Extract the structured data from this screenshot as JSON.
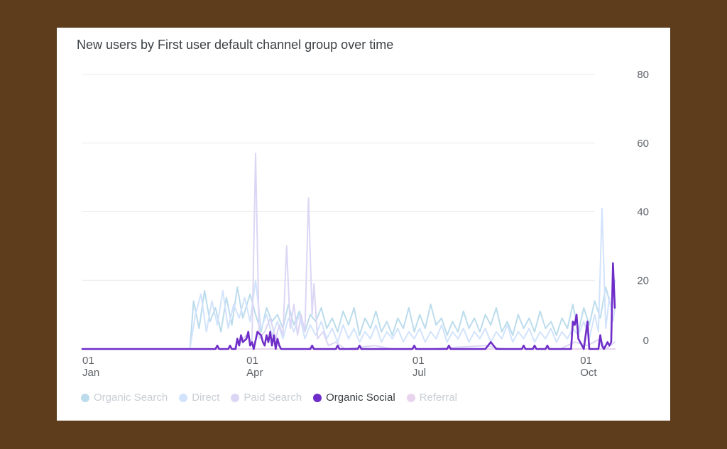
{
  "chart_data": {
    "type": "line",
    "title": "New users by First user default channel group over time",
    "ylim": [
      0,
      80
    ],
    "y_ticks": [
      "80",
      "60",
      "40",
      "20",
      "0"
    ],
    "x_ticks": [
      {
        "day": "01",
        "month": "Jan",
        "date": "2023-01-01"
      },
      {
        "day": "01",
        "month": "Apr",
        "date": "2023-04-01"
      },
      {
        "day": "01",
        "month": "Jul",
        "date": "2023-07-01"
      },
      {
        "day": "01",
        "month": "Oct",
        "date": "2023-10-01"
      }
    ],
    "x_range": [
      "2023-01-01",
      "2023-10-20"
    ],
    "grid": true,
    "legend_position": "bottom",
    "series": [
      {
        "name": "Organic Search",
        "color": "#bcdcec",
        "active": false,
        "points": [
          [
            "2023-01-01",
            0
          ],
          [
            "2023-03-01",
            0
          ],
          [
            "2023-03-03",
            14
          ],
          [
            "2023-03-06",
            6
          ],
          [
            "2023-03-09",
            17
          ],
          [
            "2023-03-12",
            8
          ],
          [
            "2023-03-15",
            12
          ],
          [
            "2023-03-18",
            5
          ],
          [
            "2023-03-21",
            15
          ],
          [
            "2023-03-24",
            7
          ],
          [
            "2023-03-27",
            18
          ],
          [
            "2023-03-30",
            9
          ],
          [
            "2023-04-03",
            16
          ],
          [
            "2023-04-06",
            10
          ],
          [
            "2023-04-09",
            5
          ],
          [
            "2023-04-12",
            12
          ],
          [
            "2023-04-15",
            8
          ],
          [
            "2023-04-18",
            10
          ],
          [
            "2023-04-21",
            6
          ],
          [
            "2023-04-24",
            13
          ],
          [
            "2023-04-27",
            7
          ],
          [
            "2023-04-30",
            11
          ],
          [
            "2023-05-03",
            5
          ],
          [
            "2023-05-06",
            10
          ],
          [
            "2023-05-09",
            8
          ],
          [
            "2023-05-12",
            12
          ],
          [
            "2023-05-15",
            6
          ],
          [
            "2023-05-18",
            9
          ],
          [
            "2023-05-21",
            5
          ],
          [
            "2023-05-24",
            11
          ],
          [
            "2023-05-27",
            7
          ],
          [
            "2023-05-30",
            12
          ],
          [
            "2023-06-02",
            4
          ],
          [
            "2023-06-05",
            9
          ],
          [
            "2023-06-08",
            6
          ],
          [
            "2023-06-11",
            11
          ],
          [
            "2023-06-14",
            5
          ],
          [
            "2023-06-17",
            8
          ],
          [
            "2023-06-20",
            4
          ],
          [
            "2023-06-23",
            9
          ],
          [
            "2023-06-26",
            6
          ],
          [
            "2023-06-29",
            12
          ],
          [
            "2023-07-02",
            5
          ],
          [
            "2023-07-05",
            10
          ],
          [
            "2023-07-08",
            6
          ],
          [
            "2023-07-11",
            13
          ],
          [
            "2023-07-14",
            7
          ],
          [
            "2023-07-17",
            9
          ],
          [
            "2023-07-20",
            4
          ],
          [
            "2023-07-23",
            8
          ],
          [
            "2023-07-26",
            5
          ],
          [
            "2023-07-29",
            11
          ],
          [
            "2023-08-01",
            6
          ],
          [
            "2023-08-04",
            9
          ],
          [
            "2023-08-07",
            5
          ],
          [
            "2023-08-10",
            10
          ],
          [
            "2023-08-13",
            7
          ],
          [
            "2023-08-16",
            12
          ],
          [
            "2023-08-19",
            5
          ],
          [
            "2023-08-22",
            8
          ],
          [
            "2023-08-25",
            4
          ],
          [
            "2023-08-28",
            10
          ],
          [
            "2023-08-31",
            6
          ],
          [
            "2023-09-03",
            9
          ],
          [
            "2023-09-06",
            5
          ],
          [
            "2023-09-09",
            11
          ],
          [
            "2023-09-12",
            6
          ],
          [
            "2023-09-15",
            8
          ],
          [
            "2023-09-18",
            4
          ],
          [
            "2023-09-21",
            9
          ],
          [
            "2023-09-24",
            6
          ],
          [
            "2023-09-27",
            13
          ],
          [
            "2023-09-30",
            5
          ],
          [
            "2023-10-03",
            12
          ],
          [
            "2023-10-06",
            7
          ],
          [
            "2023-10-09",
            14
          ],
          [
            "2023-10-12",
            9
          ],
          [
            "2023-10-15",
            18
          ],
          [
            "2023-10-18",
            12
          ],
          [
            "2023-10-20",
            20
          ]
        ]
      },
      {
        "name": "Direct",
        "color": "#d2e3fc",
        "active": false,
        "points": [
          [
            "2023-01-01",
            0
          ],
          [
            "2023-03-01",
            0
          ],
          [
            "2023-03-04",
            10
          ],
          [
            "2023-03-07",
            16
          ],
          [
            "2023-03-10",
            5
          ],
          [
            "2023-03-13",
            14
          ],
          [
            "2023-03-16",
            7
          ],
          [
            "2023-03-19",
            17
          ],
          [
            "2023-03-22",
            6
          ],
          [
            "2023-03-25",
            13
          ],
          [
            "2023-03-28",
            9
          ],
          [
            "2023-03-31",
            15
          ],
          [
            "2023-04-03",
            8
          ],
          [
            "2023-04-06",
            20
          ],
          [
            "2023-04-09",
            6
          ],
          [
            "2023-04-12",
            10
          ],
          [
            "2023-04-15",
            4
          ],
          [
            "2023-04-18",
            8
          ],
          [
            "2023-04-21",
            3
          ],
          [
            "2023-04-24",
            9
          ],
          [
            "2023-04-27",
            5
          ],
          [
            "2023-04-30",
            10
          ],
          [
            "2023-05-03",
            3
          ],
          [
            "2023-05-06",
            7
          ],
          [
            "2023-05-09",
            4
          ],
          [
            "2023-05-12",
            8
          ],
          [
            "2023-05-15",
            3
          ],
          [
            "2023-05-18",
            6
          ],
          [
            "2023-05-21",
            2
          ],
          [
            "2023-05-24",
            7
          ],
          [
            "2023-05-27",
            3
          ],
          [
            "2023-05-30",
            6
          ],
          [
            "2023-06-02",
            2
          ],
          [
            "2023-06-05",
            5
          ],
          [
            "2023-06-08",
            3
          ],
          [
            "2023-06-11",
            7
          ],
          [
            "2023-06-14",
            2
          ],
          [
            "2023-06-17",
            5
          ],
          [
            "2023-06-20",
            3
          ],
          [
            "2023-06-23",
            6
          ],
          [
            "2023-06-26",
            2
          ],
          [
            "2023-06-29",
            5
          ],
          [
            "2023-07-02",
            3
          ],
          [
            "2023-07-05",
            6
          ],
          [
            "2023-07-08",
            2
          ],
          [
            "2023-07-11",
            5
          ],
          [
            "2023-07-14",
            3
          ],
          [
            "2023-07-17",
            7
          ],
          [
            "2023-07-20",
            2
          ],
          [
            "2023-07-23",
            5
          ],
          [
            "2023-07-26",
            3
          ],
          [
            "2023-07-29",
            6
          ],
          [
            "2023-08-01",
            2
          ],
          [
            "2023-08-04",
            5
          ],
          [
            "2023-08-07",
            3
          ],
          [
            "2023-08-10",
            6
          ],
          [
            "2023-08-13",
            2
          ],
          [
            "2023-08-16",
            5
          ],
          [
            "2023-08-19",
            3
          ],
          [
            "2023-08-22",
            7
          ],
          [
            "2023-08-25",
            2
          ],
          [
            "2023-08-28",
            5
          ],
          [
            "2023-08-31",
            3
          ],
          [
            "2023-09-03",
            6
          ],
          [
            "2023-09-06",
            2
          ],
          [
            "2023-09-09",
            5
          ],
          [
            "2023-09-12",
            3
          ],
          [
            "2023-09-15",
            6
          ],
          [
            "2023-09-18",
            2
          ],
          [
            "2023-09-21",
            5
          ],
          [
            "2023-09-24",
            3
          ],
          [
            "2023-09-27",
            6
          ],
          [
            "2023-09-30",
            4
          ],
          [
            "2023-10-03",
            8
          ],
          [
            "2023-10-06",
            3
          ],
          [
            "2023-10-09",
            10
          ],
          [
            "2023-10-11",
            5
          ],
          [
            "2023-10-13",
            41
          ],
          [
            "2023-10-15",
            6
          ],
          [
            "2023-10-17",
            15
          ],
          [
            "2023-10-19",
            8
          ],
          [
            "2023-10-20",
            12
          ]
        ]
      },
      {
        "name": "Paid Search",
        "color": "#dcd6f5",
        "active": false,
        "points": [
          [
            "2023-01-01",
            0
          ],
          [
            "2023-03-25",
            0
          ],
          [
            "2023-03-28",
            2
          ],
          [
            "2023-04-01",
            4
          ],
          [
            "2023-04-04",
            2
          ],
          [
            "2023-04-06",
            57
          ],
          [
            "2023-04-08",
            3
          ],
          [
            "2023-04-11",
            5
          ],
          [
            "2023-04-14",
            9
          ],
          [
            "2023-04-17",
            3
          ],
          [
            "2023-04-19",
            7
          ],
          [
            "2023-04-21",
            4
          ],
          [
            "2023-04-23",
            30
          ],
          [
            "2023-04-25",
            6
          ],
          [
            "2023-04-27",
            13
          ],
          [
            "2023-04-29",
            4
          ],
          [
            "2023-05-01",
            10
          ],
          [
            "2023-05-03",
            5
          ],
          [
            "2023-05-05",
            44
          ],
          [
            "2023-05-07",
            10
          ],
          [
            "2023-05-08",
            19
          ],
          [
            "2023-05-10",
            3
          ],
          [
            "2023-05-13",
            5
          ],
          [
            "2023-05-16",
            1
          ],
          [
            "2023-05-20",
            2
          ],
          [
            "2023-05-25",
            0
          ],
          [
            "2023-06-10",
            1
          ],
          [
            "2023-06-20",
            0
          ],
          [
            "2023-07-10",
            0
          ],
          [
            "2023-08-10",
            1
          ],
          [
            "2023-08-20",
            0
          ],
          [
            "2023-09-20",
            0
          ],
          [
            "2023-09-28",
            2
          ],
          [
            "2023-10-05",
            1
          ],
          [
            "2023-10-12",
            3
          ],
          [
            "2023-10-15",
            0
          ],
          [
            "2023-10-20",
            2
          ]
        ]
      },
      {
        "name": "Organic Social",
        "color": "#6e2dc8",
        "active": true,
        "points": [
          [
            "2023-01-01",
            0
          ],
          [
            "2023-03-15",
            0
          ],
          [
            "2023-03-16",
            1
          ],
          [
            "2023-03-17",
            0
          ],
          [
            "2023-03-22",
            0
          ],
          [
            "2023-03-23",
            1
          ],
          [
            "2023-03-24",
            0
          ],
          [
            "2023-03-26",
            0
          ],
          [
            "2023-03-27",
            3
          ],
          [
            "2023-03-28",
            1
          ],
          [
            "2023-03-29",
            4
          ],
          [
            "2023-03-30",
            2
          ],
          [
            "2023-04-01",
            3
          ],
          [
            "2023-04-02",
            5
          ],
          [
            "2023-04-03",
            1
          ],
          [
            "2023-04-04",
            2
          ],
          [
            "2023-04-05",
            0
          ],
          [
            "2023-04-07",
            5
          ],
          [
            "2023-04-09",
            4
          ],
          [
            "2023-04-10",
            2
          ],
          [
            "2023-04-11",
            1
          ],
          [
            "2023-04-12",
            4
          ],
          [
            "2023-04-13",
            2
          ],
          [
            "2023-04-14",
            5
          ],
          [
            "2023-04-15",
            1
          ],
          [
            "2023-04-16",
            4
          ],
          [
            "2023-04-17",
            0
          ],
          [
            "2023-04-18",
            3
          ],
          [
            "2023-04-19",
            1
          ],
          [
            "2023-04-20",
            0
          ],
          [
            "2023-05-06",
            0
          ],
          [
            "2023-05-07",
            1
          ],
          [
            "2023-05-08",
            0
          ],
          [
            "2023-05-20",
            0
          ],
          [
            "2023-05-21",
            1
          ],
          [
            "2023-05-22",
            0
          ],
          [
            "2023-06-01",
            0
          ],
          [
            "2023-06-02",
            1
          ],
          [
            "2023-06-03",
            0
          ],
          [
            "2023-07-01",
            0
          ],
          [
            "2023-07-02",
            1
          ],
          [
            "2023-07-03",
            0
          ],
          [
            "2023-07-20",
            0
          ],
          [
            "2023-07-21",
            1
          ],
          [
            "2023-07-22",
            0
          ],
          [
            "2023-08-10",
            0
          ],
          [
            "2023-08-13",
            2
          ],
          [
            "2023-08-16",
            0
          ],
          [
            "2023-08-30",
            0
          ],
          [
            "2023-08-31",
            1
          ],
          [
            "2023-09-01",
            0
          ],
          [
            "2023-09-05",
            0
          ],
          [
            "2023-09-06",
            1
          ],
          [
            "2023-09-07",
            0
          ],
          [
            "2023-09-12",
            0
          ],
          [
            "2023-09-13",
            1
          ],
          [
            "2023-09-14",
            0
          ],
          [
            "2023-09-26",
            0
          ],
          [
            "2023-09-27",
            8
          ],
          [
            "2023-09-28",
            7
          ],
          [
            "2023-09-29",
            10
          ],
          [
            "2023-09-30",
            3
          ],
          [
            "2023-10-01",
            2
          ],
          [
            "2023-10-02",
            1
          ],
          [
            "2023-10-03",
            0
          ],
          [
            "2023-10-05",
            8
          ],
          [
            "2023-10-06",
            0
          ],
          [
            "2023-10-11",
            0
          ],
          [
            "2023-10-12",
            4
          ],
          [
            "2023-10-13",
            1
          ],
          [
            "2023-10-14",
            0
          ],
          [
            "2023-10-15",
            1
          ],
          [
            "2023-10-16",
            2
          ],
          [
            "2023-10-17",
            1
          ],
          [
            "2023-10-18",
            2
          ],
          [
            "2023-10-19",
            25
          ],
          [
            "2023-10-20",
            12
          ]
        ]
      },
      {
        "name": "Referral",
        "color": "#e8d4ee",
        "active": false,
        "points": [
          [
            "2023-01-01",
            0
          ],
          [
            "2023-10-20",
            0
          ]
        ]
      }
    ]
  }
}
